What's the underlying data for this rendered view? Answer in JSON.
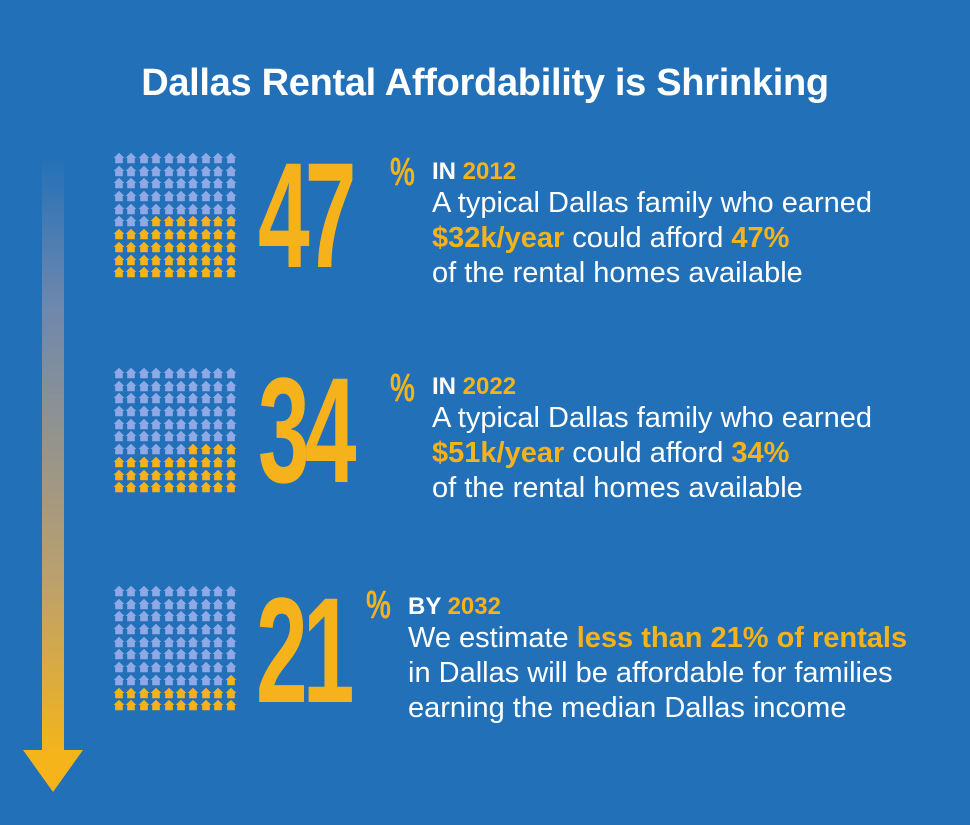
{
  "title": "Dallas Rental Affordability is Shrinking",
  "colors": {
    "background": "#2270b8",
    "accent": "#f6b21b",
    "house_unfilled": "#8fa8e6",
    "house_filled": "#f6b21b"
  },
  "rows": [
    {
      "percent_number": "47",
      "percent_sign": "%",
      "affordable_fraction": 0.47,
      "year_prefix": "IN",
      "year": "2012",
      "line1": "A typical Dallas family who earned",
      "income": "$32k/year",
      "mid": " could afford ",
      "share": "47%",
      "line3": "of the rental homes available"
    },
    {
      "percent_number": "34",
      "percent_sign": "%",
      "affordable_fraction": 0.34,
      "year_prefix": "IN",
      "year": "2022",
      "line1": "A typical Dallas family who earned",
      "income": "$51k/year",
      "mid": " could afford ",
      "share": "34%",
      "line3": "of the rental homes available"
    },
    {
      "percent_number": "21",
      "percent_sign": "%",
      "affordable_fraction": 0.21,
      "year_prefix": "BY",
      "year": "2032",
      "line1_pre": "We estimate ",
      "line1_highlight": "less than 21% of rentals",
      "line2": "in Dallas will be affordable for families",
      "line3": "earning the median Dallas income"
    }
  ]
}
